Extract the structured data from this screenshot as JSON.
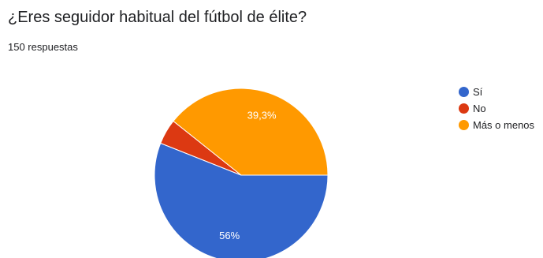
{
  "header": {
    "title": "¿Eres seguidor habitual del fútbol de élite?",
    "subtitle": "150 respuestas"
  },
  "chart_data": {
    "type": "pie",
    "title": "¿Eres seguidor habitual del fútbol de élite?",
    "total_responses": 150,
    "slices": [
      {
        "label": "Sí",
        "value": 56.0,
        "display": "56%",
        "color": "#3366cc"
      },
      {
        "label": "No",
        "value": 4.7,
        "display": "",
        "color": "#dc3912"
      },
      {
        "label": "Más o menos",
        "value": 39.3,
        "display": "39,3%",
        "color": "#ff9900"
      }
    ],
    "legend_position": "right"
  }
}
